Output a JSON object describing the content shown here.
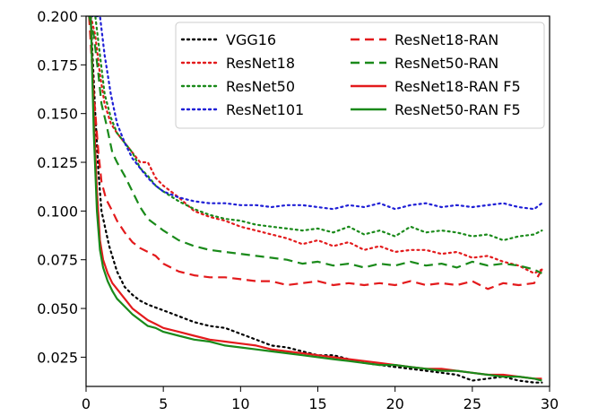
{
  "chart_data": {
    "type": "line",
    "title": "",
    "xlabel": "",
    "ylabel": "",
    "xlim": [
      0,
      30
    ],
    "ylim": [
      0.01,
      0.2
    ],
    "xticks": [
      0,
      5,
      10,
      15,
      20,
      25,
      30
    ],
    "yticks": [
      0.025,
      0.05,
      0.075,
      0.1,
      0.125,
      0.15,
      0.175,
      0.2
    ],
    "ytick_labels": [
      "0.025",
      "0.050",
      "0.075",
      "0.100",
      "0.125",
      "0.150",
      "0.175",
      "0.200"
    ],
    "grid": false,
    "legend_position": "top-right",
    "colors": {
      "black": "#000000",
      "red": "#e31a1c",
      "green": "#1a8a1a",
      "blue": "#1f1fd6"
    },
    "legend_column_left": [
      "VGG16",
      "ResNet18",
      "ResNet50",
      "ResNet101"
    ],
    "legend_column_right": [
      "ResNet18-RAN",
      "ResNet50-RAN",
      "ResNet18-RAN F5",
      "ResNet50-RAN F5"
    ],
    "series": [
      {
        "name": "VGG16",
        "color": "#000000",
        "style": "dotted",
        "x": [
          0.3,
          0.6,
          0.8,
          1.0,
          1.5,
          2.0,
          2.5,
          3.0,
          3.5,
          4.0,
          5.0,
          6.0,
          7.0,
          8.0,
          9.0,
          10.0,
          11.0,
          12.0,
          13.0,
          14.0,
          15.0,
          16.0,
          17.0,
          18.0,
          19.0,
          20.0,
          21.0,
          22.0,
          23.0,
          24.0,
          25.0,
          26.0,
          27.0,
          28.0,
          29.0,
          29.5
        ],
        "y": [
          0.2,
          0.15,
          0.12,
          0.1,
          0.082,
          0.069,
          0.061,
          0.057,
          0.054,
          0.052,
          0.049,
          0.046,
          0.043,
          0.041,
          0.04,
          0.037,
          0.034,
          0.031,
          0.03,
          0.028,
          0.026,
          0.026,
          0.024,
          0.022,
          0.021,
          0.02,
          0.019,
          0.018,
          0.017,
          0.016,
          0.013,
          0.014,
          0.015,
          0.013,
          0.012,
          0.012
        ]
      },
      {
        "name": "ResNet18",
        "color": "#e31a1c",
        "style": "dotted",
        "x": [
          0.3,
          0.6,
          0.9,
          1.2,
          1.6,
          2.0,
          2.5,
          3.0,
          3.5,
          4.0,
          4.5,
          5.0,
          6.0,
          7.0,
          8.0,
          9.0,
          10.0,
          11.0,
          12.0,
          13.0,
          14.0,
          15.0,
          16.0,
          17.0,
          18.0,
          19.0,
          20.0,
          21.0,
          22.0,
          23.0,
          24.0,
          25.0,
          26.0,
          27.0,
          28.0,
          29.0,
          29.5
        ],
        "y": [
          0.2,
          0.19,
          0.17,
          0.155,
          0.145,
          0.14,
          0.135,
          0.13,
          0.125,
          0.125,
          0.117,
          0.113,
          0.107,
          0.1,
          0.097,
          0.095,
          0.092,
          0.09,
          0.088,
          0.086,
          0.083,
          0.085,
          0.082,
          0.084,
          0.08,
          0.082,
          0.079,
          0.08,
          0.08,
          0.078,
          0.079,
          0.076,
          0.077,
          0.074,
          0.072,
          0.068,
          0.07
        ]
      },
      {
        "name": "ResNet50",
        "color": "#1a8a1a",
        "style": "dotted",
        "x": [
          0.3,
          0.6,
          0.9,
          1.2,
          1.6,
          2.0,
          2.5,
          3.0,
          3.5,
          4.0,
          4.5,
          5.0,
          6.0,
          7.0,
          8.0,
          9.0,
          10.0,
          11.0,
          12.0,
          13.0,
          14.0,
          15.0,
          16.0,
          17.0,
          18.0,
          19.0,
          20.0,
          21.0,
          22.0,
          23.0,
          24.0,
          25.0,
          26.0,
          27.0,
          28.0,
          29.0,
          29.5
        ],
        "y": [
          0.2,
          0.2,
          0.18,
          0.16,
          0.148,
          0.14,
          0.135,
          0.13,
          0.122,
          0.118,
          0.113,
          0.11,
          0.105,
          0.101,
          0.098,
          0.096,
          0.095,
          0.093,
          0.092,
          0.091,
          0.09,
          0.091,
          0.089,
          0.092,
          0.088,
          0.09,
          0.087,
          0.092,
          0.089,
          0.09,
          0.089,
          0.087,
          0.088,
          0.085,
          0.087,
          0.088,
          0.09
        ]
      },
      {
        "name": "ResNet101",
        "color": "#1f1fd6",
        "style": "dotted",
        "x": [
          0.3,
          0.6,
          0.9,
          1.2,
          1.6,
          2.0,
          2.5,
          3.0,
          3.5,
          4.0,
          4.5,
          5.0,
          6.0,
          7.0,
          8.0,
          9.0,
          10.0,
          11.0,
          12.0,
          13.0,
          14.0,
          15.0,
          16.0,
          17.0,
          18.0,
          19.0,
          20.0,
          21.0,
          22.0,
          23.0,
          24.0,
          25.0,
          26.0,
          27.0,
          28.0,
          29.0,
          29.5
        ],
        "y": [
          0.2,
          0.2,
          0.2,
          0.18,
          0.16,
          0.145,
          0.135,
          0.127,
          0.122,
          0.117,
          0.113,
          0.11,
          0.107,
          0.105,
          0.104,
          0.104,
          0.103,
          0.103,
          0.102,
          0.103,
          0.103,
          0.102,
          0.101,
          0.103,
          0.102,
          0.104,
          0.101,
          0.103,
          0.104,
          0.102,
          0.103,
          0.102,
          0.103,
          0.104,
          0.102,
          0.101,
          0.104
        ]
      },
      {
        "name": "ResNet18-RAN",
        "color": "#e31a1c",
        "style": "dashed",
        "x": [
          0.2,
          0.5,
          0.8,
          1.0,
          1.3,
          1.7,
          2.0,
          2.5,
          3.0,
          3.5,
          4.0,
          4.5,
          5.0,
          6.0,
          7.0,
          8.0,
          9.0,
          10.0,
          11.0,
          12.0,
          13.0,
          14.0,
          15.0,
          16.0,
          17.0,
          18.0,
          19.0,
          20.0,
          21.0,
          22.0,
          23.0,
          24.0,
          25.0,
          26.0,
          27.0,
          28.0,
          29.0,
          29.5
        ],
        "y": [
          0.2,
          0.16,
          0.13,
          0.115,
          0.106,
          0.1,
          0.095,
          0.089,
          0.084,
          0.081,
          0.079,
          0.077,
          0.073,
          0.069,
          0.067,
          0.066,
          0.066,
          0.065,
          0.064,
          0.064,
          0.062,
          0.063,
          0.064,
          0.062,
          0.063,
          0.062,
          0.063,
          0.062,
          0.064,
          0.062,
          0.063,
          0.062,
          0.064,
          0.06,
          0.063,
          0.062,
          0.063,
          0.07
        ]
      },
      {
        "name": "ResNet50-RAN",
        "color": "#1a8a1a",
        "style": "dashed",
        "x": [
          0.2,
          0.5,
          0.8,
          1.0,
          1.3,
          1.7,
          2.0,
          2.5,
          3.0,
          3.5,
          4.0,
          4.5,
          5.0,
          6.0,
          7.0,
          8.0,
          9.0,
          10.0,
          11.0,
          12.0,
          13.0,
          14.0,
          15.0,
          16.0,
          17.0,
          18.0,
          19.0,
          20.0,
          21.0,
          22.0,
          23.0,
          24.0,
          25.0,
          26.0,
          27.0,
          28.0,
          29.0,
          29.5
        ],
        "y": [
          0.2,
          0.19,
          0.17,
          0.155,
          0.145,
          0.13,
          0.125,
          0.118,
          0.11,
          0.102,
          0.096,
          0.093,
          0.09,
          0.085,
          0.082,
          0.08,
          0.079,
          0.078,
          0.077,
          0.076,
          0.075,
          0.073,
          0.074,
          0.072,
          0.073,
          0.071,
          0.073,
          0.072,
          0.074,
          0.072,
          0.073,
          0.071,
          0.074,
          0.072,
          0.073,
          0.072,
          0.07,
          0.068
        ]
      },
      {
        "name": "ResNet18-RAN F5",
        "color": "#e31a1c",
        "style": "solid",
        "x": [
          0.3,
          0.5,
          0.7,
          0.9,
          1.1,
          1.4,
          1.7,
          2.0,
          2.5,
          3.0,
          3.5,
          4.0,
          4.5,
          5.0,
          6.0,
          7.0,
          8.0,
          9.0,
          10.0,
          11.0,
          12.0,
          13.0,
          14.0,
          15.0,
          16.0,
          17.0,
          18.0,
          19.0,
          20.0,
          21.0,
          22.0,
          23.0,
          24.0,
          25.0,
          26.0,
          27.0,
          28.0,
          29.0,
          29.5
        ],
        "y": [
          0.2,
          0.15,
          0.11,
          0.085,
          0.075,
          0.068,
          0.063,
          0.06,
          0.055,
          0.05,
          0.047,
          0.044,
          0.042,
          0.04,
          0.038,
          0.036,
          0.034,
          0.033,
          0.032,
          0.031,
          0.029,
          0.028,
          0.027,
          0.026,
          0.025,
          0.024,
          0.023,
          0.022,
          0.021,
          0.02,
          0.019,
          0.019,
          0.018,
          0.017,
          0.016,
          0.016,
          0.015,
          0.014,
          0.014
        ]
      },
      {
        "name": "ResNet50-RAN F5",
        "color": "#1a8a1a",
        "style": "solid",
        "x": [
          0.3,
          0.5,
          0.7,
          0.9,
          1.1,
          1.4,
          1.7,
          2.0,
          2.5,
          3.0,
          3.5,
          4.0,
          4.5,
          5.0,
          6.0,
          7.0,
          8.0,
          9.0,
          10.0,
          11.0,
          12.0,
          13.0,
          14.0,
          15.0,
          16.0,
          17.0,
          18.0,
          19.0,
          20.0,
          21.0,
          22.0,
          23.0,
          24.0,
          25.0,
          26.0,
          27.0,
          28.0,
          29.0,
          29.5
        ],
        "y": [
          0.2,
          0.14,
          0.1,
          0.08,
          0.071,
          0.064,
          0.059,
          0.055,
          0.051,
          0.047,
          0.044,
          0.041,
          0.04,
          0.038,
          0.036,
          0.034,
          0.033,
          0.031,
          0.03,
          0.029,
          0.028,
          0.027,
          0.026,
          0.025,
          0.024,
          0.023,
          0.022,
          0.021,
          0.021,
          0.02,
          0.019,
          0.018,
          0.018,
          0.017,
          0.016,
          0.015,
          0.015,
          0.014,
          0.013
        ]
      }
    ]
  }
}
